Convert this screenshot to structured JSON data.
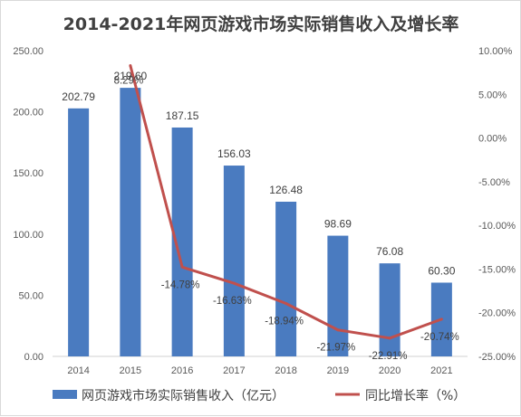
{
  "chart_data": {
    "type": "bar+line",
    "title": "2014-2021年网页游戏市场实际销售收入及增长率",
    "categories": [
      "2014",
      "2015",
      "2016",
      "2017",
      "2018",
      "2019",
      "2020",
      "2021"
    ],
    "series": [
      {
        "name": "网页游戏市场实际销售收入（亿元）",
        "type": "bar",
        "axis": "left",
        "color": "#4a7bc0",
        "values": [
          202.79,
          219.6,
          187.15,
          156.03,
          126.48,
          98.69,
          76.08,
          60.3
        ],
        "labels": [
          "202.79",
          "219.60",
          "187.15",
          "156.03",
          "126.48",
          "98.69",
          "76.08",
          "60.30"
        ]
      },
      {
        "name": "同比增长率（%）",
        "type": "line",
        "axis": "right",
        "color": "#c0504d",
        "values": [
          null,
          8.29,
          -14.78,
          -16.63,
          -18.94,
          -21.97,
          -22.91,
          -20.74
        ],
        "labels": [
          "",
          "8.29%",
          "-14.78%",
          "-16.63%",
          "-18.94%",
          "-21.97%",
          "-22.91%",
          "-20.74%"
        ]
      }
    ],
    "left_axis": {
      "ylim": [
        0,
        250
      ],
      "ticks": [
        0,
        50,
        100,
        150,
        200,
        250
      ],
      "tick_labels": [
        "0.00",
        "50.00",
        "100.00",
        "150.00",
        "200.00",
        "250.00"
      ]
    },
    "right_axis": {
      "ylim": [
        -25,
        10
      ],
      "ticks": [
        10,
        5,
        0,
        -5,
        -10,
        -15,
        -20,
        -25
      ],
      "tick_labels": [
        "10.00%",
        "5.00%",
        "0.00%",
        "-5.00%",
        "-10.00%",
        "-15.00%",
        "-20.00%",
        "-25.00%"
      ]
    },
    "grid": false,
    "legend_position": "bottom"
  }
}
